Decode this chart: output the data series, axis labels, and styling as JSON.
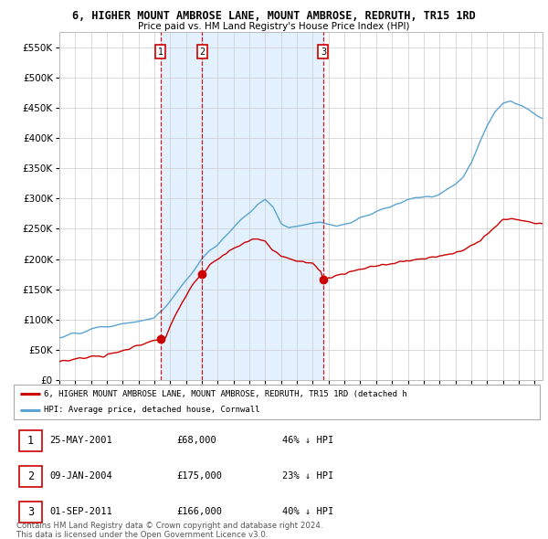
{
  "title": "6, HIGHER MOUNT AMBROSE LANE, MOUNT AMBROSE, REDRUTH, TR15 1RD",
  "subtitle": "Price paid vs. HM Land Registry's House Price Index (HPI)",
  "hpi_color": "#5ba3d0",
  "price_color": "#cc0000",
  "background_color": "#ffffff",
  "grid_color": "#cccccc",
  "shade_color": "#ddeeff",
  "ylim": [
    0,
    575000
  ],
  "yticks": [
    0,
    50000,
    100000,
    150000,
    200000,
    250000,
    300000,
    350000,
    400000,
    450000,
    500000,
    550000
  ],
  "legend_line1": "6, HIGHER MOUNT AMBROSE LANE, MOUNT AMBROSE, REDRUTH, TR15 1RD (detached h",
  "legend_line2": "HPI: Average price, detached house, Cornwall",
  "footnote1": "Contains HM Land Registry data © Crown copyright and database right 2024.",
  "footnote2": "This data is licensed under the Open Government Licence v3.0.",
  "sale1_year": 2001.388,
  "sale2_year": 2004.022,
  "sale3_year": 2011.667,
  "sale1_price": 68000,
  "sale2_price": 175000,
  "sale3_price": 166000,
  "xmin": 1995,
  "xmax": 2025.5
}
